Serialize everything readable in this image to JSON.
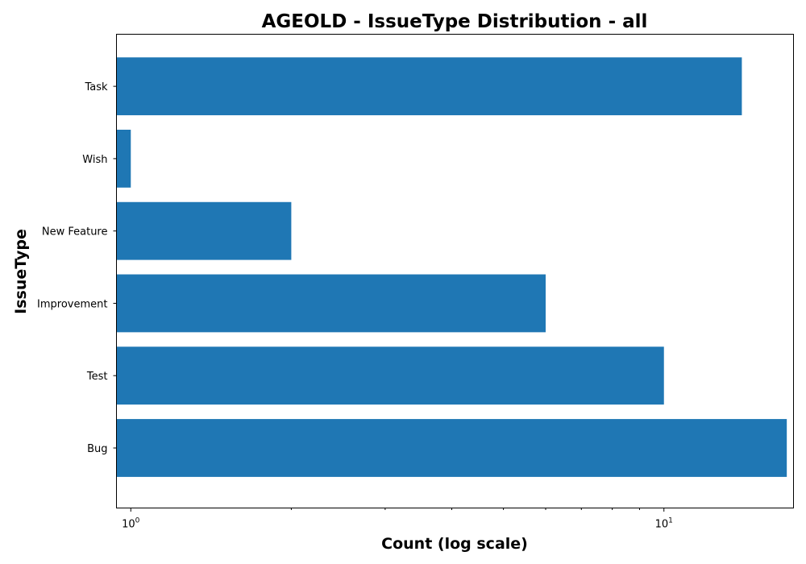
{
  "chart_data": {
    "type": "bar",
    "orientation": "horizontal",
    "title": "AGEOLD - IssueType Distribution - all",
    "xlabel": "Count (log scale)",
    "ylabel": "IssueType",
    "x_scale": "log",
    "xlim": [
      0.94,
      17.5
    ],
    "x_ticks": [
      {
        "value": 1,
        "base": "10",
        "exp": "0"
      },
      {
        "value": 10,
        "base": "10",
        "exp": "1"
      }
    ],
    "categories": [
      "Task",
      "Wish",
      "New Feature",
      "Improvement",
      "Test",
      "Bug"
    ],
    "values": [
      14,
      1,
      2,
      6,
      10,
      17
    ],
    "bar_color": "#1f77b4",
    "grid": false,
    "legend": "none"
  }
}
